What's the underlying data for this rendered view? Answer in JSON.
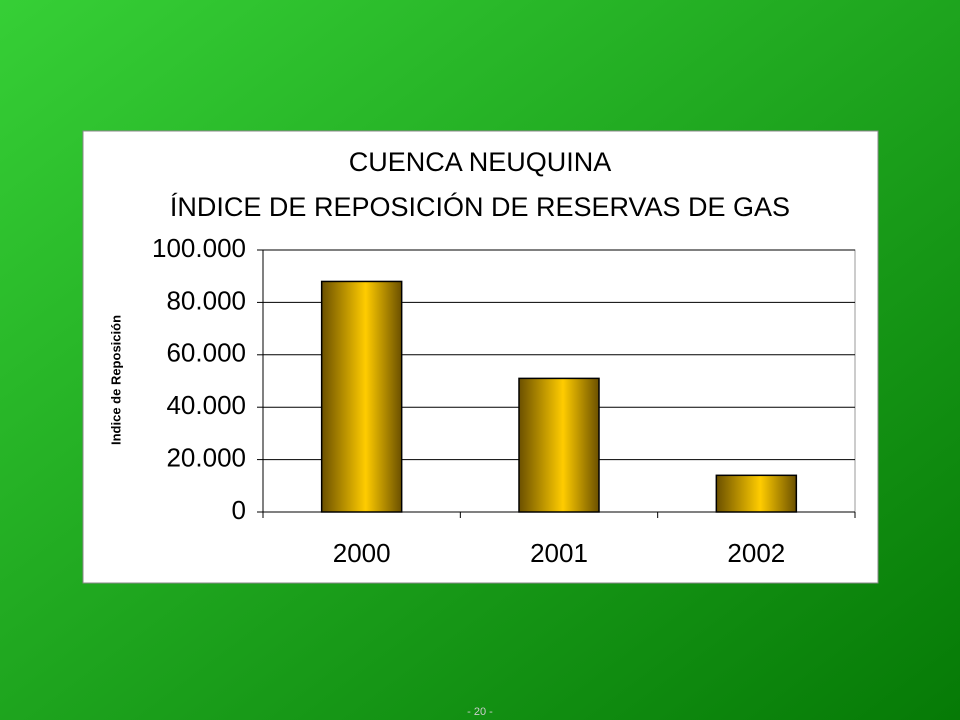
{
  "chart_data": {
    "type": "bar",
    "title": "CUENCA NEUQUINA",
    "subtitle": "ÍNDICE DE REPOSICIÓN DE RESERVAS DE GAS",
    "y_label": "Indice de Reposición",
    "categories": [
      "2000",
      "2001",
      "2002"
    ],
    "values": [
      88000,
      51000,
      14000
    ],
    "color": "#ffcc00",
    "ylim": [
      0,
      100000
    ],
    "yticks": [
      0,
      {
        "value": 20000,
        "label": "20.000"
      },
      {
        "value": 40000,
        "label": "40.000"
      },
      {
        "value": 60000,
        "label": "60.000"
      },
      {
        "value": 80000,
        "label": "80.000"
      },
      {
        "value": 100000,
        "label": "100.000"
      }
    ],
    "grid": true
  },
  "footer": "- 20 -"
}
